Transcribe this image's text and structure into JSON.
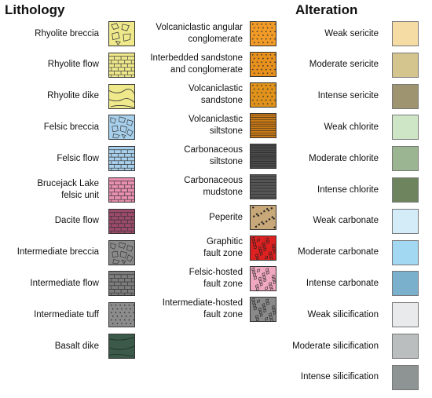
{
  "headings": {
    "lithology": "Lithology",
    "alteration": "Alteration"
  },
  "lithology_left": [
    {
      "label": "Rhyolite breccia",
      "icon": "rhyolite-breccia-pattern",
      "color": "#efe98c"
    },
    {
      "label": "Rhyolite flow",
      "icon": "rhyolite-flow-pattern",
      "color": "#efe98c"
    },
    {
      "label": "Rhyolite dike",
      "icon": "rhyolite-dike-pattern",
      "color": "#efe98c"
    },
    {
      "label": "Felsic breccia",
      "icon": "felsic-breccia-pattern",
      "color": "#a8d0ec"
    },
    {
      "label": "Felsic flow",
      "icon": "felsic-flow-pattern",
      "color": "#a8d0ec"
    },
    {
      "label": "Brucejack Lake\nfelsic unit",
      "icon": "brucejack-felsic-pattern",
      "color": "#e98fb0"
    },
    {
      "label": "Dacite flow",
      "icon": "dacite-flow-pattern",
      "color": "#9c4a6a"
    },
    {
      "label": "Intermediate breccia",
      "icon": "intermediate-breccia-pattern",
      "color": "#8a8a8a"
    },
    {
      "label": "Intermediate flow",
      "icon": "intermediate-flow-pattern",
      "color": "#7d7d7d"
    },
    {
      "label": "Intermediate tuff",
      "icon": "intermediate-tuff-pattern",
      "color": "#8c8c8c"
    },
    {
      "label": "Basalt dike",
      "icon": "basalt-dike-pattern",
      "color": "#3c5a4a"
    }
  ],
  "lithology_middle": [
    {
      "label": "Volcaniclastic angular\nconglomerate",
      "icon": "angular-conglomerate-pattern",
      "color": "#f29a26"
    },
    {
      "label": "Interbedded sandstone\nand conglomerate",
      "icon": "sandstone-conglomerate-pattern",
      "color": "#e8901c"
    },
    {
      "label": "Volcaniclastic\nsandstone",
      "icon": "volcaniclastic-sandstone-pattern",
      "color": "#e0921a"
    },
    {
      "label": "Volcaniclastic\nsiltstone",
      "icon": "volcaniclastic-siltstone-pattern",
      "color": "#c87a16"
    },
    {
      "label": "Carbonaceous\nsiltstone",
      "icon": "carbonaceous-siltstone-pattern",
      "color": "#4a4a4a"
    },
    {
      "label": "Carbonaceous\nmudstone",
      "icon": "carbonaceous-mudstone-pattern",
      "color": "#555555"
    },
    {
      "label": "Peperite",
      "icon": "peperite-pattern",
      "color": "#c8a878"
    },
    {
      "label": "Graphitic\nfault zone",
      "icon": "graphitic-fault-pattern",
      "color": "#dd2020"
    },
    {
      "label": "Felsic-hosted\nfault zone",
      "icon": "felsic-fault-pattern",
      "color": "#f0a8c0"
    },
    {
      "label": "Intermediate-hosted\nfault zone",
      "icon": "intermediate-fault-pattern",
      "color": "#8a8a8a"
    }
  ],
  "alteration": [
    {
      "label": "Weak sericite",
      "color": "#f5dca4"
    },
    {
      "label": "Moderate sericite",
      "color": "#d4c48e"
    },
    {
      "label": "Intense sericite",
      "color": "#9e9470"
    },
    {
      "label": "Weak chlorite",
      "color": "#cfe6c6"
    },
    {
      "label": "Moderate chlorite",
      "color": "#9bb592"
    },
    {
      "label": "Intense chlorite",
      "color": "#6e845e"
    },
    {
      "label": "Weak carbonate",
      "color": "#d4ecf8"
    },
    {
      "label": "Moderate carbonate",
      "color": "#a2d8f2"
    },
    {
      "label": "Intense carbonate",
      "color": "#7ab0cc"
    },
    {
      "label": "Weak silicification",
      "color": "#e8eaec"
    },
    {
      "label": "Moderate silicification",
      "color": "#babebe"
    },
    {
      "label": "Intense silicification",
      "color": "#8e9494"
    }
  ]
}
